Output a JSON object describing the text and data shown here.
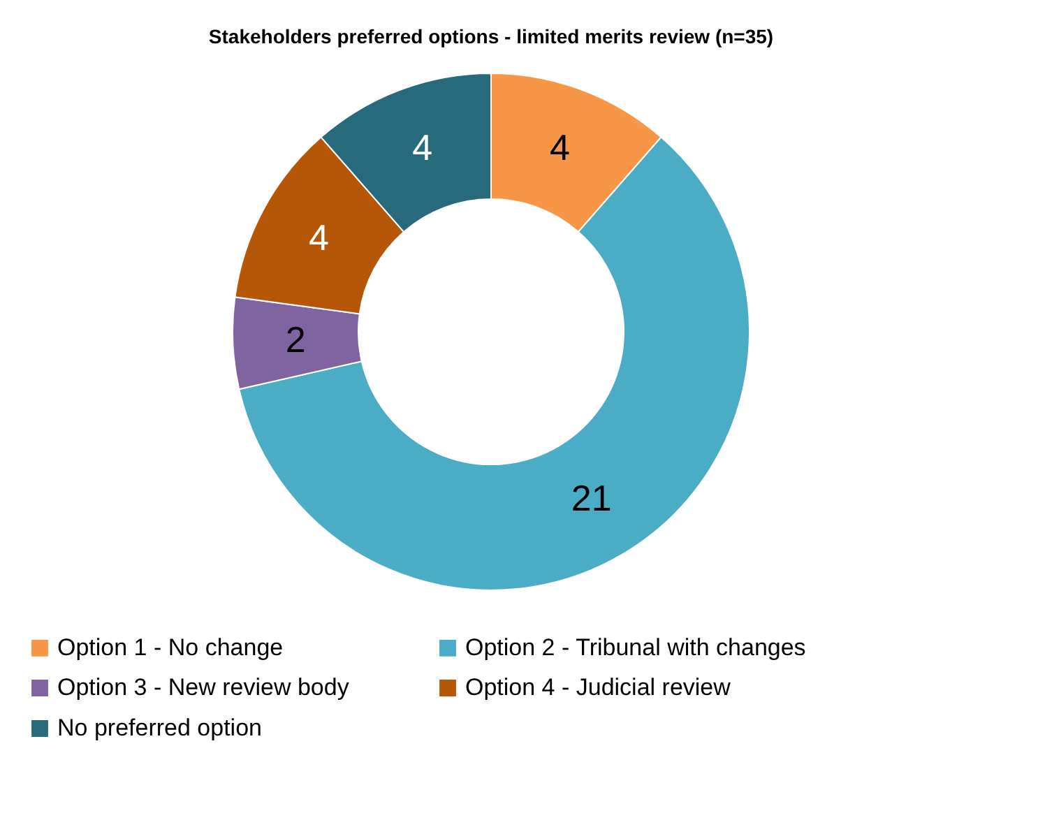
{
  "chart_data": {
    "type": "donut",
    "title": "Stakeholders preferred options  - limited merits review (n=35)",
    "categories": [
      "Option 1 - No change",
      "Option 2 - Tribunal with changes",
      "Option 3 - New review body",
      "Option 4 - Judicial review",
      "No preferred option"
    ],
    "values": [
      4,
      21,
      2,
      4,
      4
    ],
    "colors": [
      "#f79646",
      "#4bacc6",
      "#8064a2",
      "#b65708",
      "#276a7c"
    ],
    "data_labels": true,
    "legend": "bottom"
  }
}
